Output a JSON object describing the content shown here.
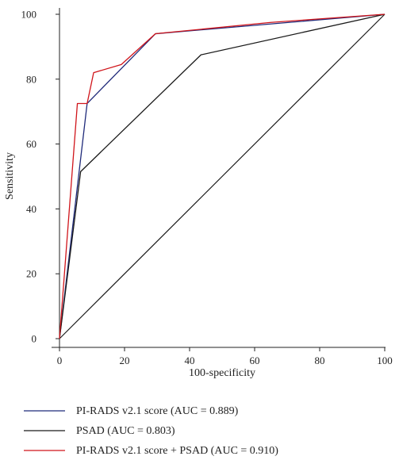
{
  "chart_data": {
    "type": "line",
    "title": "",
    "xlabel": "100-specificity",
    "ylabel": "Sensitivity",
    "xlim": [
      0,
      100
    ],
    "ylim": [
      0,
      100
    ],
    "xticks": [
      0,
      20,
      40,
      60,
      80,
      100
    ],
    "yticks": [
      0,
      20,
      40,
      60,
      80,
      100
    ],
    "grid": false,
    "legend_position": "bottom",
    "diagonal_reference": {
      "x": [
        0,
        100
      ],
      "y": [
        0,
        100
      ],
      "color": "#1a1a1a"
    },
    "series": [
      {
        "name": "PI-RADS v2.1 score (AUC = 0.889)",
        "color": "#1f2a7a",
        "x": [
          0,
          8.5,
          29.5,
          100
        ],
        "y": [
          0,
          72.5,
          94,
          100
        ]
      },
      {
        "name": "PSAD (AUC = 0.803)",
        "color": "#1a1a1a",
        "x": [
          0,
          6.5,
          43.5,
          100
        ],
        "y": [
          0,
          51.5,
          87.5,
          100
        ]
      },
      {
        "name": "PI-RADS v2.1 score + PSAD (AUC = 0.910)",
        "color": "#d0151b",
        "x": [
          0,
          5.5,
          8.5,
          10.5,
          19,
          29.5,
          65,
          100
        ],
        "y": [
          0,
          72.5,
          72.5,
          82,
          84.5,
          94,
          97.5,
          100
        ]
      }
    ]
  }
}
